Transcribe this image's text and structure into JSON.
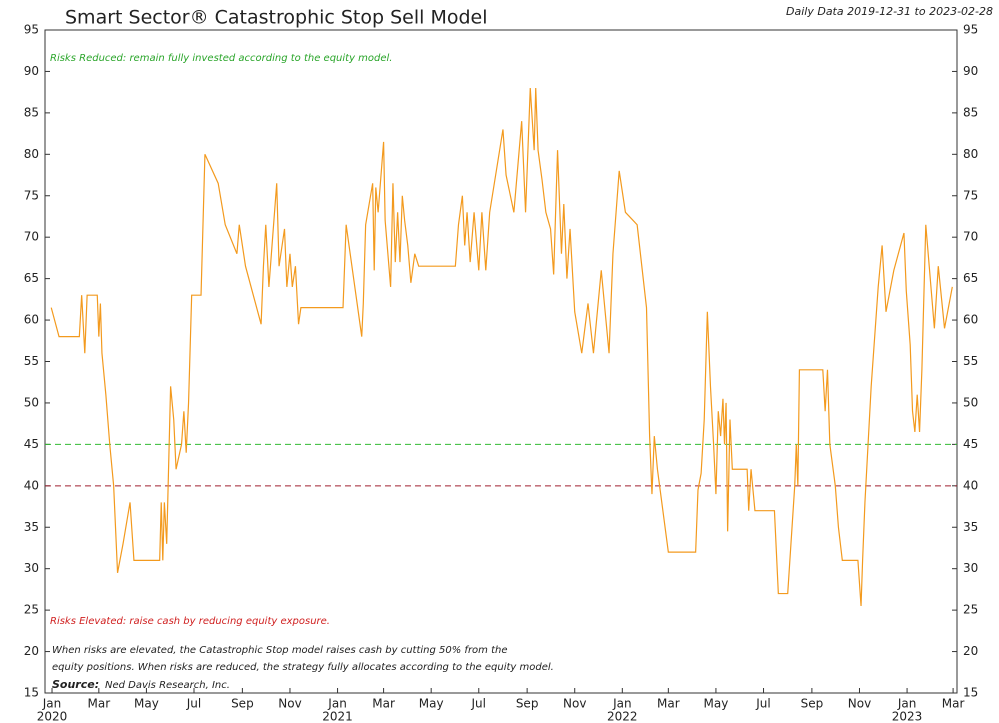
{
  "chart_data": {
    "type": "line",
    "title": "Smart Sector® Catastrophic Stop Sell Model",
    "subtitle": "Daily Data 2019-12-31 to 2023-02-28",
    "annotations": {
      "upper": "Risks Reduced: remain fully invested according to the equity model.",
      "lower": "Risks Elevated: raise cash by reducing equity exposure.",
      "note": [
        "When risks are elevated, the Catastrophic Stop model raises cash by cutting 50% from the",
        "equity positions. When risks are reduced, the strategy fully allocates according to the equity model."
      ],
      "source_label": "Source:",
      "source": "Ned Davis Research, Inc."
    },
    "xlim": [
      "2019-12-23",
      "2023-03-06"
    ],
    "ylim": [
      15,
      95
    ],
    "yticks": [
      15,
      20,
      25,
      30,
      35,
      40,
      45,
      50,
      55,
      60,
      65,
      70,
      75,
      80,
      85,
      90,
      95
    ],
    "xticks": [
      {
        "value": "2020-01-01",
        "label": "Jan"
      },
      {
        "value": "2020-03-01",
        "label": "Mar"
      },
      {
        "value": "2020-05-01",
        "label": "May"
      },
      {
        "value": "2020-07-01",
        "label": "Jul"
      },
      {
        "value": "2020-09-01",
        "label": "Sep"
      },
      {
        "value": "2020-11-01",
        "label": "Nov"
      },
      {
        "value": "2021-01-01",
        "label": "Jan"
      },
      {
        "value": "2021-03-01",
        "label": "Mar"
      },
      {
        "value": "2021-05-01",
        "label": "May"
      },
      {
        "value": "2021-07-01",
        "label": "Jul"
      },
      {
        "value": "2021-09-01",
        "label": "Sep"
      },
      {
        "value": "2021-11-01",
        "label": "Nov"
      },
      {
        "value": "2022-01-01",
        "label": "Jan"
      },
      {
        "value": "2022-03-01",
        "label": "Mar"
      },
      {
        "value": "2022-05-01",
        "label": "May"
      },
      {
        "value": "2022-07-01",
        "label": "Jul"
      },
      {
        "value": "2022-09-01",
        "label": "Sep"
      },
      {
        "value": "2022-11-01",
        "label": "Nov"
      },
      {
        "value": "2023-01-01",
        "label": "Jan"
      },
      {
        "value": "2023-03-01",
        "label": "Mar"
      }
    ],
    "xtick_years": [
      {
        "value": "2020-01-01",
        "label": "2020"
      },
      {
        "value": "2021-01-01",
        "label": "2021"
      },
      {
        "value": "2022-01-01",
        "label": "2022"
      },
      {
        "value": "2023-01-01",
        "label": "2023"
      }
    ],
    "reference_lines": [
      {
        "value": 45,
        "color": "#33bb33"
      },
      {
        "value": 40,
        "color": "#a02030"
      }
    ],
    "series": [
      {
        "color": "#f39a1e",
        "x": [
          "2019-12-31",
          "2020-01-10",
          "2020-02-05",
          "2020-02-08",
          "2020-02-12",
          "2020-02-15",
          "2020-02-28",
          "2020-03-01",
          "2020-03-03",
          "2020-03-05",
          "2020-03-10",
          "2020-03-15",
          "2020-03-20",
          "2020-03-25",
          "2020-04-01",
          "2020-04-10",
          "2020-04-15",
          "2020-05-18",
          "2020-05-20",
          "2020-05-22",
          "2020-05-24",
          "2020-05-27",
          "2020-06-01",
          "2020-06-05",
          "2020-06-08",
          "2020-06-15",
          "2020-06-18",
          "2020-06-21",
          "2020-06-24",
          "2020-06-28",
          "2020-07-10",
          "2020-07-15",
          "2020-08-01",
          "2020-08-10",
          "2020-08-25",
          "2020-08-28",
          "2020-09-05",
          "2020-09-25",
          "2020-09-28",
          "2020-10-01",
          "2020-10-05",
          "2020-10-15",
          "2020-10-18",
          "2020-10-25",
          "2020-10-28",
          "2020-11-01",
          "2020-11-04",
          "2020-11-08",
          "2020-11-12",
          "2020-11-15",
          "2021-01-08",
          "2021-01-12",
          "2021-02-01",
          "2021-02-03",
          "2021-02-06",
          "2021-02-15",
          "2021-02-17",
          "2021-02-19",
          "2021-02-22",
          "2021-03-01",
          "2021-03-03",
          "2021-03-10",
          "2021-03-13",
          "2021-03-16",
          "2021-03-19",
          "2021-03-22",
          "2021-03-25",
          "2021-03-28",
          "2021-04-01",
          "2021-04-05",
          "2021-04-10",
          "2021-04-15",
          "2021-06-01",
          "2021-06-05",
          "2021-06-10",
          "2021-06-13",
          "2021-06-16",
          "2021-06-20",
          "2021-06-25",
          "2021-07-01",
          "2021-07-05",
          "2021-07-10",
          "2021-07-15",
          "2021-08-01",
          "2021-08-05",
          "2021-08-15",
          "2021-08-25",
          "2021-08-30",
          "2021-09-05",
          "2021-09-10",
          "2021-09-12",
          "2021-09-15",
          "2021-09-20",
          "2021-09-25",
          "2021-10-01",
          "2021-10-05",
          "2021-10-10",
          "2021-10-15",
          "2021-10-18",
          "2021-10-22",
          "2021-10-26",
          "2021-11-01",
          "2021-11-10",
          "2021-11-18",
          "2021-11-25",
          "2021-12-05",
          "2021-12-10",
          "2021-12-15",
          "2021-12-20",
          "2021-12-28",
          "2022-01-05",
          "2022-01-20",
          "2022-02-01",
          "2022-02-05",
          "2022-02-08",
          "2022-02-11",
          "2022-02-15",
          "2022-03-01",
          "2022-04-05",
          "2022-04-08",
          "2022-04-12",
          "2022-04-16",
          "2022-04-20",
          "2022-04-24",
          "2022-04-28",
          "2022-05-01",
          "2022-05-04",
          "2022-05-07",
          "2022-05-10",
          "2022-05-12",
          "2022-05-14",
          "2022-05-16",
          "2022-05-19",
          "2022-05-22",
          "2022-06-10",
          "2022-06-12",
          "2022-06-15",
          "2022-06-20",
          "2022-07-15",
          "2022-07-20",
          "2022-08-01",
          "2022-08-10",
          "2022-08-12",
          "2022-08-14",
          "2022-08-16",
          "2022-09-15",
          "2022-09-18",
          "2022-09-21",
          "2022-09-24",
          "2022-10-01",
          "2022-10-05",
          "2022-10-10",
          "2022-10-30",
          "2022-11-03",
          "2022-11-05",
          "2022-11-08",
          "2022-11-12",
          "2022-11-16",
          "2022-11-25",
          "2022-11-30",
          "2022-12-05",
          "2022-12-15",
          "2022-12-28",
          "2022-12-31",
          "2023-01-05",
          "2023-01-08",
          "2023-01-11",
          "2023-01-14",
          "2023-01-17",
          "2023-01-20",
          "2023-01-25",
          "2023-02-05",
          "2023-02-10",
          "2023-02-18",
          "2023-02-28"
        ],
        "values": [
          61.5,
          58,
          58,
          63,
          56,
          63,
          63,
          58,
          62,
          56,
          51,
          45,
          40,
          29.5,
          33,
          38,
          31,
          31,
          38,
          31,
          38,
          33,
          52,
          48,
          42,
          45,
          49,
          44,
          50,
          63,
          63,
          80,
          76.5,
          71.5,
          68,
          71.5,
          66.5,
          59.5,
          66.5,
          71.5,
          64,
          76.5,
          66.5,
          71,
          64,
          68,
          64,
          66.5,
          59.5,
          61.5,
          61.5,
          71.5,
          58,
          62,
          71.5,
          76.5,
          66,
          76,
          73,
          81.5,
          72,
          64,
          76.5,
          67,
          73,
          67,
          75,
          72,
          69,
          64.5,
          68,
          66.5,
          66.5,
          71.5,
          75,
          69,
          73,
          67,
          73,
          66,
          73,
          66,
          73,
          83,
          77.5,
          73,
          84,
          73,
          88,
          80.5,
          88,
          80.5,
          77,
          73,
          71,
          65.5,
          80.5,
          68,
          74,
          65,
          71,
          61,
          56,
          62,
          56,
          66,
          61,
          56,
          68,
          78,
          73,
          71.5,
          61.5,
          46,
          39,
          46,
          42,
          32,
          32,
          39.5,
          41.5,
          48,
          61,
          52,
          45,
          39,
          49,
          46,
          50.5,
          45,
          50,
          34.5,
          48,
          42,
          42,
          37,
          42,
          37,
          37,
          27,
          27,
          40,
          45,
          40,
          54,
          54,
          49,
          54,
          45,
          40,
          35,
          31,
          31,
          25.5,
          31,
          38,
          45,
          52,
          64,
          69,
          61,
          66,
          70.5,
          63.5,
          57,
          49,
          46.5,
          51,
          46.5,
          54,
          71.5,
          59,
          66.5,
          59,
          64
        ]
      }
    ]
  }
}
